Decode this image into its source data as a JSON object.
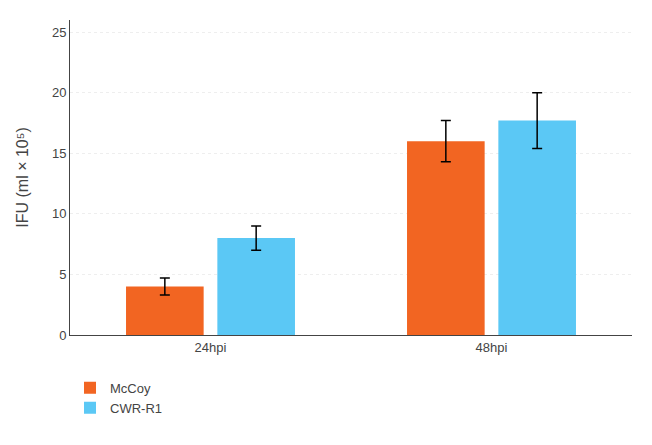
{
  "chart_data": {
    "type": "bar",
    "categories": [
      "24hpi",
      "48hpi"
    ],
    "series": [
      {
        "name": "McCoy",
        "color": "#F26522",
        "values": [
          4.0,
          16.0
        ],
        "errors": [
          0.7,
          1.7
        ]
      },
      {
        "name": "CWR-R1",
        "color": "#5BC8F5",
        "values": [
          8.0,
          17.7
        ],
        "errors": [
          1.0,
          2.3
        ]
      }
    ],
    "ylabel": "IFU (ml × 10⁵)",
    "ylim": [
      0,
      26
    ],
    "yticks": [
      0,
      5,
      10,
      15,
      20,
      25
    ],
    "grid": true,
    "legend": "bottom"
  }
}
